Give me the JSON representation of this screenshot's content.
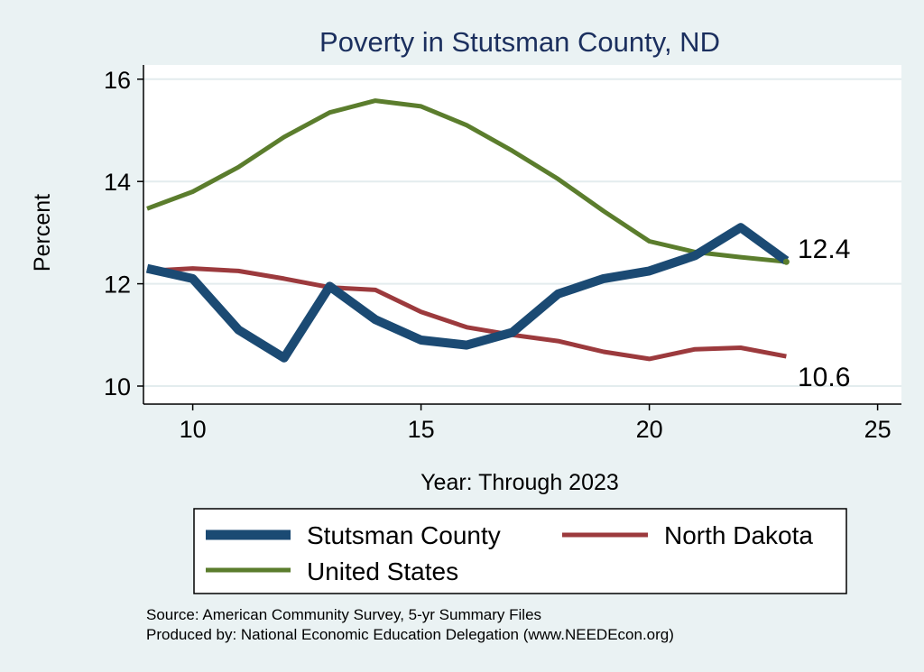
{
  "colors": {
    "background": "#eaf2f3",
    "plot_background": "#ffffff",
    "gridline": "#e3ecee",
    "title": "#1b2f5e",
    "stutsman": "#1b4a73",
    "north_dakota": "#9c3a3d",
    "united_states": "#5b7d2d"
  },
  "chart_data": {
    "type": "line",
    "title": "Poverty in Stutsman County, ND",
    "xlabel": "Year: Through 2023",
    "ylabel": "Percent",
    "xlim": [
      9,
      25
    ],
    "ylim": [
      10,
      16
    ],
    "xticks": [
      10,
      15,
      20,
      25
    ],
    "yticks": [
      10,
      12,
      14,
      16
    ],
    "grid": true,
    "legend_position": "bottom",
    "x": [
      9,
      10,
      11,
      12,
      13,
      14,
      15,
      16,
      17,
      18,
      19,
      20,
      21,
      22,
      23
    ],
    "series": [
      {
        "key": "stutsman",
        "name": "Stutsman County",
        "values": [
          12.3,
          12.1,
          11.1,
          10.55,
          11.95,
          11.3,
          10.9,
          10.8,
          11.05,
          11.8,
          12.1,
          12.25,
          12.55,
          13.1,
          12.45
        ]
      },
      {
        "key": "north_dakota",
        "name": "North Dakota",
        "values": [
          12.25,
          12.3,
          12.25,
          12.1,
          11.93,
          11.88,
          11.45,
          11.15,
          11.0,
          10.88,
          10.67,
          10.53,
          10.72,
          10.75,
          10.58
        ]
      },
      {
        "key": "united_states",
        "name": "United States",
        "values": [
          13.47,
          13.8,
          14.28,
          14.87,
          15.35,
          15.58,
          15.47,
          15.1,
          14.6,
          14.05,
          13.42,
          12.83,
          12.62,
          12.52,
          12.43
        ]
      }
    ],
    "annotations": [
      {
        "key": "stutsman_end",
        "text": "12.4"
      },
      {
        "key": "nd_end",
        "text": "10.6"
      }
    ]
  },
  "source_lines": [
    "Source: American Community Survey, 5-yr Summary Files",
    "Produced by: National Economic Education Delegation (www.NEEDEcon.org)"
  ]
}
